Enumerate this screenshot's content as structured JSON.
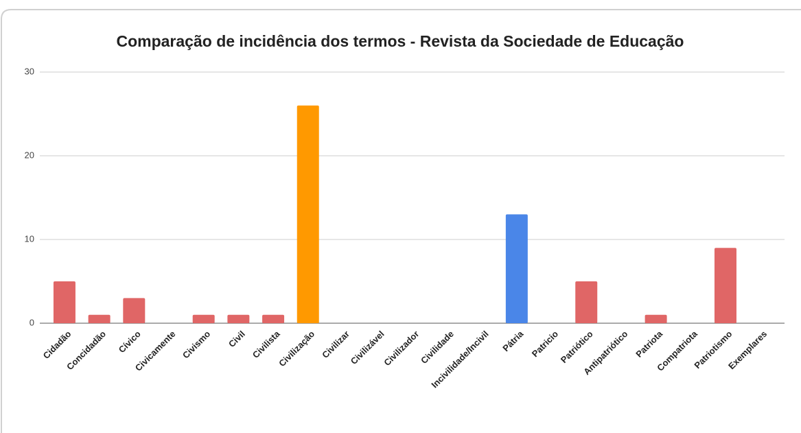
{
  "chart_data": {
    "type": "bar",
    "title": "Comparação de incidência dos termos -  Revista da Sociedade de Educação",
    "categories": [
      "Cidadão",
      "Concidadão",
      "Cívico",
      "Civicamente",
      "Civismo",
      "Civil",
      "Civilista",
      "Civilização",
      "Civilizar",
      "Civilizável",
      "Civilizador",
      "Civilidade",
      "Incivilidade/Incivil",
      "Pátria",
      "Patricio",
      "Patriótico",
      "Antipatriótico",
      "Patriota",
      "Compatriota",
      "Patriotismo",
      "Exemplares"
    ],
    "values": [
      5,
      1,
      3,
      0,
      1,
      1,
      1,
      26,
      0,
      0,
      0,
      0,
      0,
      13,
      0,
      5,
      0,
      1,
      0,
      9,
      0
    ],
    "colors": [
      "#e06666",
      "#e06666",
      "#e06666",
      "#e06666",
      "#e06666",
      "#e06666",
      "#e06666",
      "#ff9900",
      "#e06666",
      "#e06666",
      "#e06666",
      "#e06666",
      "#e06666",
      "#4a86e8",
      "#e06666",
      "#e06666",
      "#e06666",
      "#e06666",
      "#e06666",
      "#e06666",
      "#e06666"
    ],
    "ylim": [
      0,
      30
    ],
    "yticks": [
      0,
      10,
      20,
      30
    ],
    "grid": true
  }
}
